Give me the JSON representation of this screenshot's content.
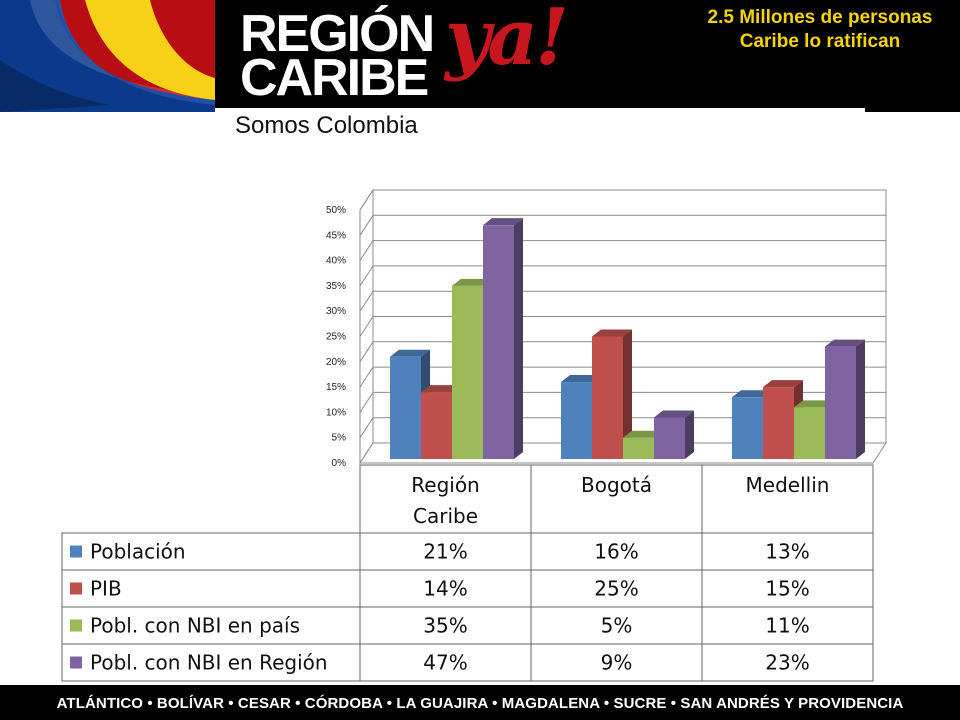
{
  "header": {
    "logo_line1": "REGIÓN",
    "logo_line2": "CARIBE",
    "logo_ya": "ya!",
    "slogan": "Somos Colombia",
    "headline": "2.5 Millones de personas Caribe lo ratifican"
  },
  "footer": {
    "provinces": "ATLÁNTICO • BOLÍVAR • CESAR • CÓRDOBA • LA GUAJIRA • MAGDALENA • SUCRE • SAN ANDRÉS Y PROVIDENCIA"
  },
  "flag_colors": [
    "#f7d117",
    "#0b3a8c",
    "#c8102e"
  ],
  "chart_data": {
    "type": "bar",
    "categories": [
      "Región Caribe",
      "Bogotá",
      "Medellin"
    ],
    "series": [
      {
        "name": "Población",
        "values": [
          21,
          16,
          13
        ],
        "labels": [
          "21%",
          "16%",
          "13%"
        ],
        "color": "#4f81bd"
      },
      {
        "name": "PIB",
        "values": [
          14,
          25,
          15
        ],
        "labels": [
          "14%",
          "25%",
          "15%"
        ],
        "color": "#c0504d"
      },
      {
        "name": "Pobl. con NBI en país",
        "values": [
          35,
          5,
          11
        ],
        "labels": [
          "35%",
          "5%",
          "11%"
        ],
        "color": "#9bbb59"
      },
      {
        "name": "Pobl. con NBI en Región",
        "values": [
          47,
          9,
          23
        ],
        "labels": [
          "47%",
          "9%",
          "23%"
        ],
        "color": "#8064a2"
      }
    ],
    "yticks": [
      "0%",
      "5%",
      "10%",
      "15%",
      "20%",
      "25%",
      "30%",
      "35%",
      "40%",
      "45%",
      "50%"
    ],
    "ylim": [
      0,
      50
    ],
    "grid": true,
    "legend": "data-table"
  }
}
